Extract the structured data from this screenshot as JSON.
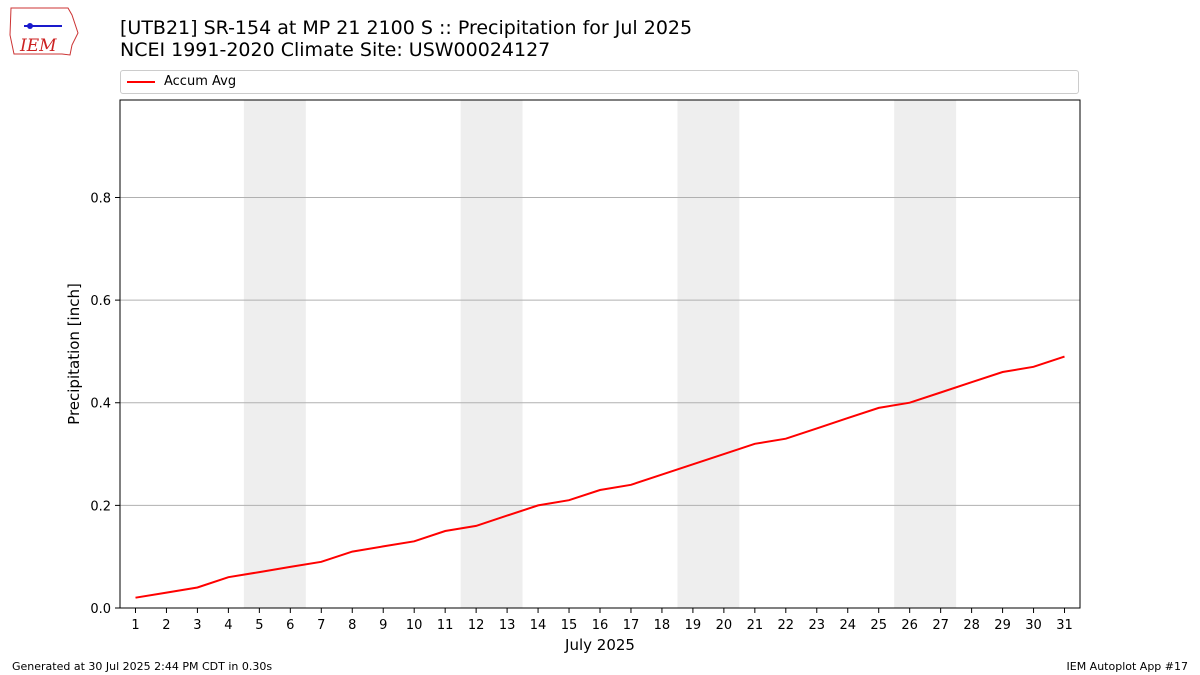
{
  "header": {
    "title_line1": "[UTB21] SR-154 at MP 21 2100 S  :: Precipitation for Jul 2025",
    "title_line2": "NCEI 1991-2020 Climate Site: USW00024127",
    "logo_text": "IEM"
  },
  "footer": {
    "left": "Generated at 30 Jul 2025 2:44 PM CDT in 0.30s",
    "right": "IEM Autoplot App #17"
  },
  "colors": {
    "line": "#ff0000",
    "weekend_band": "#eeeeee",
    "grid": "#b0b0b0",
    "logo": "#1a1acc"
  },
  "chart_data": {
    "type": "line",
    "xlabel": "July 2025",
    "ylabel": "Precipitation [inch]",
    "x": [
      1,
      2,
      3,
      4,
      5,
      6,
      7,
      8,
      9,
      10,
      11,
      12,
      13,
      14,
      15,
      16,
      17,
      18,
      19,
      20,
      21,
      22,
      23,
      24,
      25,
      26,
      27,
      28,
      29,
      30,
      31
    ],
    "xticks": [
      "1",
      "2",
      "3",
      "4",
      "5",
      "6",
      "7",
      "8",
      "9",
      "10",
      "11",
      "12",
      "13",
      "14",
      "15",
      "16",
      "17",
      "18",
      "19",
      "20",
      "21",
      "22",
      "23",
      "24",
      "25",
      "26",
      "27",
      "28",
      "29",
      "30",
      "31"
    ],
    "yticks": [
      0.0,
      0.2,
      0.4,
      0.6,
      0.8
    ],
    "ytick_labels": [
      "0.0",
      "0.2",
      "0.4",
      "0.6",
      "0.8"
    ],
    "xlim": [
      0.5,
      31.5
    ],
    "ylim": [
      0,
      0.99
    ],
    "grid": "horizontal",
    "legend_position": "top",
    "shaded_weekends": [
      [
        5,
        6
      ],
      [
        12,
        13
      ],
      [
        19,
        20
      ],
      [
        26,
        27
      ]
    ],
    "series": [
      {
        "name": "Accum Avg",
        "values": [
          0.02,
          0.03,
          0.04,
          0.06,
          0.07,
          0.08,
          0.09,
          0.11,
          0.12,
          0.13,
          0.15,
          0.16,
          0.18,
          0.2,
          0.21,
          0.23,
          0.24,
          0.26,
          0.28,
          0.3,
          0.32,
          0.33,
          0.35,
          0.37,
          0.39,
          0.4,
          0.42,
          0.44,
          0.46,
          0.47,
          0.49
        ]
      }
    ]
  }
}
